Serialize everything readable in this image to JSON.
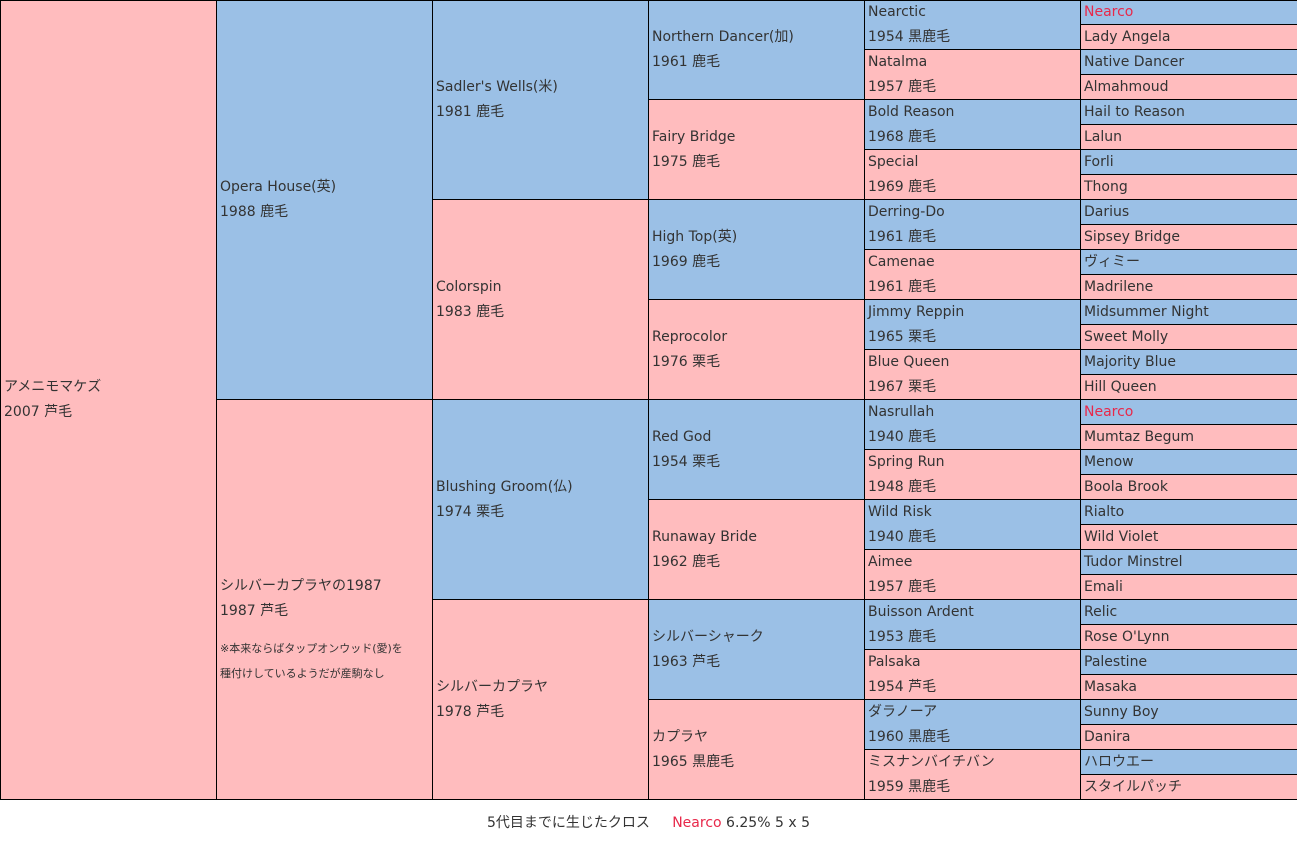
{
  "colors": {
    "male": "#9bc0e6",
    "female": "#ffbcbe",
    "cross": "#e8284a"
  },
  "root": {
    "name": "アメニモマケズ",
    "info": "2007 芦毛"
  },
  "gen1": [
    {
      "name": "Opera House(英)",
      "info": "1988 鹿毛"
    },
    {
      "name": "シルバーカプラヤの1987",
      "info": "1987 芦毛",
      "note": [
        "※本来ならばタップオンウッド(愛)を",
        "種付けしているようだが産駒なし"
      ]
    }
  ],
  "gen2": [
    {
      "name": "Sadler's Wells(米)",
      "info": "1981 鹿毛"
    },
    {
      "name": "Colorspin",
      "info": "1983 鹿毛"
    },
    {
      "name": "Blushing Groom(仏)",
      "info": "1974 栗毛"
    },
    {
      "name": "シルバーカプラヤ",
      "info": "1978 芦毛"
    }
  ],
  "gen3": [
    {
      "name": "Northern Dancer(加)",
      "info": "1961 鹿毛"
    },
    {
      "name": "Fairy Bridge",
      "info": "1975 鹿毛"
    },
    {
      "name": "High Top(英)",
      "info": "1969 鹿毛"
    },
    {
      "name": "Reprocolor",
      "info": "1976 栗毛"
    },
    {
      "name": "Red God",
      "info": "1954 栗毛"
    },
    {
      "name": "Runaway Bride",
      "info": "1962 鹿毛"
    },
    {
      "name": "シルバーシャーク",
      "info": "1963 芦毛"
    },
    {
      "name": "カプラヤ",
      "info": "1965 黒鹿毛"
    }
  ],
  "gen4": [
    {
      "name": "Nearctic",
      "info": "1954 黒鹿毛"
    },
    {
      "name": "Natalma",
      "info": "1957 鹿毛"
    },
    {
      "name": "Bold Reason",
      "info": "1968 鹿毛"
    },
    {
      "name": "Special",
      "info": "1969 鹿毛"
    },
    {
      "name": "Derring-Do",
      "info": "1961 鹿毛"
    },
    {
      "name": "Camenae",
      "info": "1961 鹿毛"
    },
    {
      "name": "Jimmy Reppin",
      "info": "1965 栗毛"
    },
    {
      "name": "Blue Queen",
      "info": "1967 栗毛"
    },
    {
      "name": "Nasrullah",
      "info": "1940 鹿毛"
    },
    {
      "name": "Spring Run",
      "info": "1948 鹿毛"
    },
    {
      "name": "Wild Risk",
      "info": "1940 鹿毛"
    },
    {
      "name": "Aimee",
      "info": "1957 鹿毛"
    },
    {
      "name": "Buisson Ardent",
      "info": "1953 鹿毛"
    },
    {
      "name": "Palsaka",
      "info": "1954 芦毛"
    },
    {
      "name": "ダラノーア",
      "info": "1960 黒鹿毛"
    },
    {
      "name": "ミスナンバイチバン",
      "info": "1959 黒鹿毛"
    }
  ],
  "gen5": [
    {
      "name": "Nearco",
      "cross": true
    },
    {
      "name": "Lady Angela"
    },
    {
      "name": "Native Dancer"
    },
    {
      "name": "Almahmoud"
    },
    {
      "name": "Hail to Reason"
    },
    {
      "name": "Lalun"
    },
    {
      "name": "Forli"
    },
    {
      "name": "Thong"
    },
    {
      "name": "Darius"
    },
    {
      "name": "Sipsey Bridge"
    },
    {
      "name": "ヴィミー"
    },
    {
      "name": "Madrilene"
    },
    {
      "name": "Midsummer Night"
    },
    {
      "name": "Sweet Molly"
    },
    {
      "name": "Majority Blue"
    },
    {
      "name": "Hill Queen"
    },
    {
      "name": "Nearco",
      "cross": true
    },
    {
      "name": "Mumtaz Begum"
    },
    {
      "name": "Menow"
    },
    {
      "name": "Boola Brook"
    },
    {
      "name": "Rialto"
    },
    {
      "name": "Wild Violet"
    },
    {
      "name": "Tudor Minstrel"
    },
    {
      "name": "Emali"
    },
    {
      "name": "Relic"
    },
    {
      "name": "Rose O'Lynn"
    },
    {
      "name": "Palestine"
    },
    {
      "name": "Masaka"
    },
    {
      "name": "Sunny Boy"
    },
    {
      "name": "Danira"
    },
    {
      "name": "ハロウエー"
    },
    {
      "name": "スタイルパッチ"
    }
  ],
  "footer": {
    "label": "5代目までに生じたクロス",
    "cross_name": "Nearco",
    "cross_stats": "6.25% 5 x 5"
  }
}
